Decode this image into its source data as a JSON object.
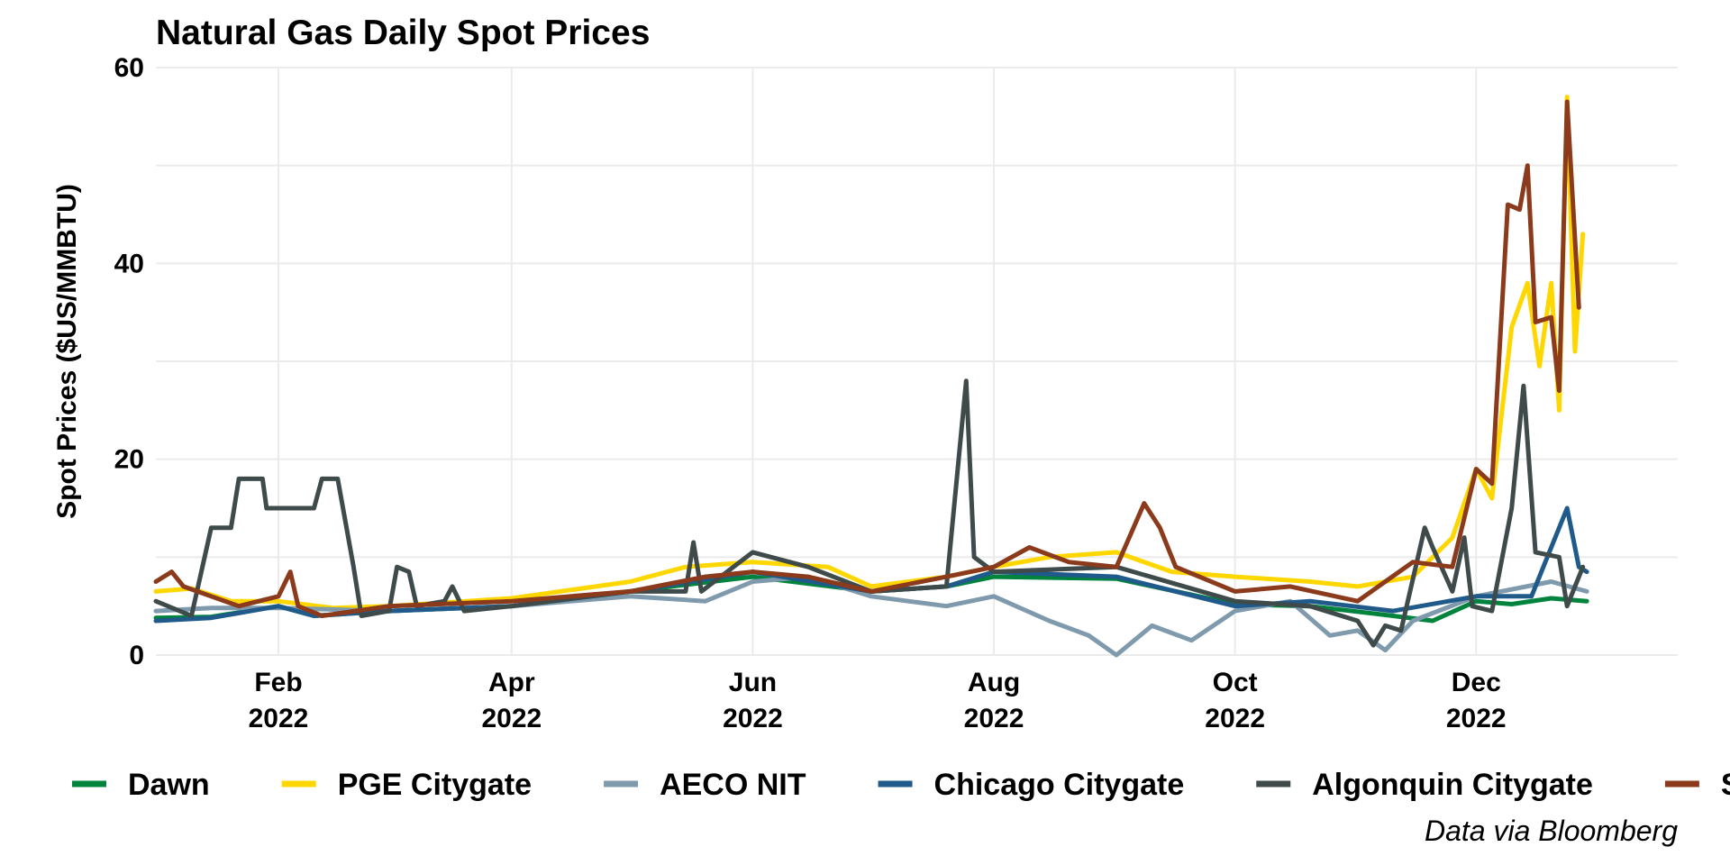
{
  "chart_data": {
    "type": "line",
    "title": "Natural Gas Daily Spot Prices",
    "xlabel": "",
    "ylabel": "Spot Prices ($US/MMBTU)",
    "caption": "Data via Bloomberg",
    "ylim": [
      0,
      60
    ],
    "xlim": [
      "2022-01-01",
      "2023-01-21"
    ],
    "y_ticks": [
      "0",
      "20",
      "40",
      "60"
    ],
    "x_ticks": [
      {
        "date": "2022-02-01",
        "month": "Feb",
        "year": "2022"
      },
      {
        "date": "2022-04-01",
        "month": "Apr",
        "year": "2022"
      },
      {
        "date": "2022-06-01",
        "month": "Jun",
        "year": "2022"
      },
      {
        "date": "2022-08-01",
        "month": "Aug",
        "year": "2022"
      },
      {
        "date": "2022-10-01",
        "month": "Oct",
        "year": "2022"
      },
      {
        "date": "2022-12-01",
        "month": "Dec",
        "year": "2022"
      }
    ],
    "legend_position": "bottom",
    "series": [
      {
        "name": "Dawn",
        "color": "#00843D",
        "points": [
          [
            "2022-01-01",
            3.8
          ],
          [
            "2022-01-15",
            3.9
          ],
          [
            "2022-02-01",
            5.0
          ],
          [
            "2022-02-10",
            4.0
          ],
          [
            "2022-03-01",
            4.5
          ],
          [
            "2022-04-01",
            5.0
          ],
          [
            "2022-05-01",
            6.5
          ],
          [
            "2022-06-01",
            8.0
          ],
          [
            "2022-07-01",
            6.5
          ],
          [
            "2022-07-20",
            7.0
          ],
          [
            "2022-08-01",
            8.0
          ],
          [
            "2022-09-01",
            7.8
          ],
          [
            "2022-10-01",
            5.2
          ],
          [
            "2022-10-20",
            5.0
          ],
          [
            "2022-11-10",
            4.0
          ],
          [
            "2022-11-20",
            3.5
          ],
          [
            "2022-12-01",
            5.5
          ],
          [
            "2022-12-10",
            5.2
          ],
          [
            "2022-12-20",
            5.8
          ],
          [
            "2022-12-29",
            5.5
          ]
        ]
      },
      {
        "name": "PGE Citygate",
        "color": "#FFD700",
        "points": [
          [
            "2022-01-01",
            6.5
          ],
          [
            "2022-01-10",
            6.8
          ],
          [
            "2022-01-20",
            5.5
          ],
          [
            "2022-02-01",
            5.5
          ],
          [
            "2022-02-15",
            4.8
          ],
          [
            "2022-03-01",
            5.0
          ],
          [
            "2022-04-01",
            5.8
          ],
          [
            "2022-05-01",
            7.5
          ],
          [
            "2022-05-15",
            9.0
          ],
          [
            "2022-06-01",
            9.5
          ],
          [
            "2022-06-20",
            9.0
          ],
          [
            "2022-07-01",
            7.0
          ],
          [
            "2022-07-20",
            8.0
          ],
          [
            "2022-08-01",
            9.0
          ],
          [
            "2022-08-15",
            10.0
          ],
          [
            "2022-09-01",
            10.5
          ],
          [
            "2022-09-15",
            8.5
          ],
          [
            "2022-10-01",
            8.0
          ],
          [
            "2022-10-20",
            7.5
          ],
          [
            "2022-11-01",
            7.0
          ],
          [
            "2022-11-15",
            8.0
          ],
          [
            "2022-11-25",
            12.0
          ],
          [
            "2022-12-01",
            19.0
          ],
          [
            "2022-12-05",
            16.0
          ],
          [
            "2022-12-10",
            33.5
          ],
          [
            "2022-12-14",
            38.0
          ],
          [
            "2022-12-17",
            29.5
          ],
          [
            "2022-12-20",
            38.0
          ],
          [
            "2022-12-22",
            25.0
          ],
          [
            "2022-12-24",
            57.0
          ],
          [
            "2022-12-26",
            31.0
          ],
          [
            "2022-12-28",
            43.0
          ]
        ]
      },
      {
        "name": "AECO NIT",
        "color": "#7F9AAD",
        "points": [
          [
            "2022-01-01",
            4.5
          ],
          [
            "2022-01-15",
            4.8
          ],
          [
            "2022-02-01",
            4.8
          ],
          [
            "2022-03-01",
            4.5
          ],
          [
            "2022-04-01",
            5.0
          ],
          [
            "2022-05-01",
            6.0
          ],
          [
            "2022-05-20",
            5.5
          ],
          [
            "2022-06-01",
            7.5
          ],
          [
            "2022-06-15",
            8.0
          ],
          [
            "2022-07-01",
            6.0
          ],
          [
            "2022-07-20",
            5.0
          ],
          [
            "2022-08-01",
            6.0
          ],
          [
            "2022-08-15",
            3.5
          ],
          [
            "2022-08-25",
            2.0
          ],
          [
            "2022-09-01",
            0.0
          ],
          [
            "2022-09-10",
            3.0
          ],
          [
            "2022-09-20",
            1.5
          ],
          [
            "2022-10-01",
            4.5
          ],
          [
            "2022-10-15",
            5.5
          ],
          [
            "2022-10-25",
            2.0
          ],
          [
            "2022-11-01",
            2.5
          ],
          [
            "2022-11-08",
            0.5
          ],
          [
            "2022-11-15",
            3.5
          ],
          [
            "2022-12-01",
            6.0
          ],
          [
            "2022-12-20",
            7.5
          ],
          [
            "2022-12-29",
            6.5
          ]
        ]
      },
      {
        "name": "Chicago Citygate",
        "color": "#1F5A8B",
        "points": [
          [
            "2022-01-01",
            3.5
          ],
          [
            "2022-01-15",
            3.8
          ],
          [
            "2022-02-01",
            5.0
          ],
          [
            "2022-02-10",
            4.0
          ],
          [
            "2022-03-01",
            4.5
          ],
          [
            "2022-04-01",
            5.0
          ],
          [
            "2022-05-01",
            6.5
          ],
          [
            "2022-06-01",
            8.5
          ],
          [
            "2022-07-01",
            6.5
          ],
          [
            "2022-07-20",
            7.0
          ],
          [
            "2022-08-01",
            8.5
          ],
          [
            "2022-09-01",
            8.0
          ],
          [
            "2022-10-01",
            5.0
          ],
          [
            "2022-10-20",
            5.5
          ],
          [
            "2022-11-10",
            4.5
          ],
          [
            "2022-12-01",
            6.0
          ],
          [
            "2022-12-15",
            6.0
          ],
          [
            "2022-12-24",
            15.0
          ],
          [
            "2022-12-27",
            9.0
          ],
          [
            "2022-12-29",
            8.5
          ]
        ]
      },
      {
        "name": "Algonquin Citygate",
        "color": "#3F4A4A",
        "points": [
          [
            "2022-01-01",
            5.5
          ],
          [
            "2022-01-10",
            4.0
          ],
          [
            "2022-01-15",
            13.0
          ],
          [
            "2022-01-20",
            13.0
          ],
          [
            "2022-01-22",
            18.0
          ],
          [
            "2022-01-28",
            18.0
          ],
          [
            "2022-01-29",
            15.0
          ],
          [
            "2022-02-10",
            15.0
          ],
          [
            "2022-02-12",
            18.0
          ],
          [
            "2022-02-16",
            18.0
          ],
          [
            "2022-02-20",
            9.0
          ],
          [
            "2022-02-22",
            4.0
          ],
          [
            "2022-03-01",
            4.5
          ],
          [
            "2022-03-03",
            9.0
          ],
          [
            "2022-03-06",
            8.5
          ],
          [
            "2022-03-08",
            5.0
          ],
          [
            "2022-03-15",
            5.5
          ],
          [
            "2022-03-17",
            7.0
          ],
          [
            "2022-03-20",
            4.5
          ],
          [
            "2022-04-01",
            5.0
          ],
          [
            "2022-05-01",
            6.5
          ],
          [
            "2022-05-15",
            6.5
          ],
          [
            "2022-05-17",
            11.5
          ],
          [
            "2022-05-19",
            6.5
          ],
          [
            "2022-06-01",
            10.5
          ],
          [
            "2022-06-15",
            9.0
          ],
          [
            "2022-07-01",
            6.5
          ],
          [
            "2022-07-20",
            7.0
          ],
          [
            "2022-07-25",
            28.0
          ],
          [
            "2022-07-27",
            10.0
          ],
          [
            "2022-08-01",
            8.5
          ],
          [
            "2022-09-01",
            9.0
          ],
          [
            "2022-10-01",
            5.5
          ],
          [
            "2022-10-20",
            5.0
          ],
          [
            "2022-11-01",
            3.5
          ],
          [
            "2022-11-05",
            1.0
          ],
          [
            "2022-11-08",
            3.0
          ],
          [
            "2022-11-12",
            2.5
          ],
          [
            "2022-11-18",
            13.0
          ],
          [
            "2022-11-20",
            11.0
          ],
          [
            "2022-11-25",
            6.5
          ],
          [
            "2022-11-28",
            12.0
          ],
          [
            "2022-11-30",
            5.0
          ],
          [
            "2022-12-05",
            4.5
          ],
          [
            "2022-12-10",
            15.0
          ],
          [
            "2022-12-13",
            27.5
          ],
          [
            "2022-12-16",
            10.5
          ],
          [
            "2022-12-22",
            10.0
          ],
          [
            "2022-12-24",
            5.0
          ],
          [
            "2022-12-28",
            9.0
          ]
        ]
      },
      {
        "name": "SoCal Citygate",
        "color": "#8B3A1B",
        "points": [
          [
            "2022-01-01",
            7.5
          ],
          [
            "2022-01-05",
            8.5
          ],
          [
            "2022-01-08",
            7.0
          ],
          [
            "2022-01-15",
            6.0
          ],
          [
            "2022-01-22",
            5.0
          ],
          [
            "2022-02-01",
            6.0
          ],
          [
            "2022-02-04",
            8.5
          ],
          [
            "2022-02-06",
            5.0
          ],
          [
            "2022-02-12",
            4.0
          ],
          [
            "2022-03-01",
            5.0
          ],
          [
            "2022-04-01",
            5.5
          ],
          [
            "2022-05-01",
            6.5
          ],
          [
            "2022-05-20",
            8.0
          ],
          [
            "2022-06-01",
            8.5
          ],
          [
            "2022-06-15",
            8.0
          ],
          [
            "2022-07-01",
            6.5
          ],
          [
            "2022-07-20",
            8.0
          ],
          [
            "2022-08-01",
            9.0
          ],
          [
            "2022-08-10",
            11.0
          ],
          [
            "2022-08-20",
            9.5
          ],
          [
            "2022-09-01",
            9.0
          ],
          [
            "2022-09-08",
            15.5
          ],
          [
            "2022-09-12",
            13.0
          ],
          [
            "2022-09-16",
            9.0
          ],
          [
            "2022-10-01",
            6.5
          ],
          [
            "2022-10-15",
            7.0
          ],
          [
            "2022-11-01",
            5.5
          ],
          [
            "2022-11-15",
            9.5
          ],
          [
            "2022-11-25",
            9.0
          ],
          [
            "2022-12-01",
            19.0
          ],
          [
            "2022-12-05",
            17.5
          ],
          [
            "2022-12-09",
            46.0
          ],
          [
            "2022-12-12",
            45.5
          ],
          [
            "2022-12-14",
            50.0
          ],
          [
            "2022-12-16",
            34.0
          ],
          [
            "2022-12-20",
            34.5
          ],
          [
            "2022-12-22",
            27.0
          ],
          [
            "2022-12-24",
            56.5
          ],
          [
            "2022-12-27",
            35.5
          ]
        ]
      }
    ]
  }
}
